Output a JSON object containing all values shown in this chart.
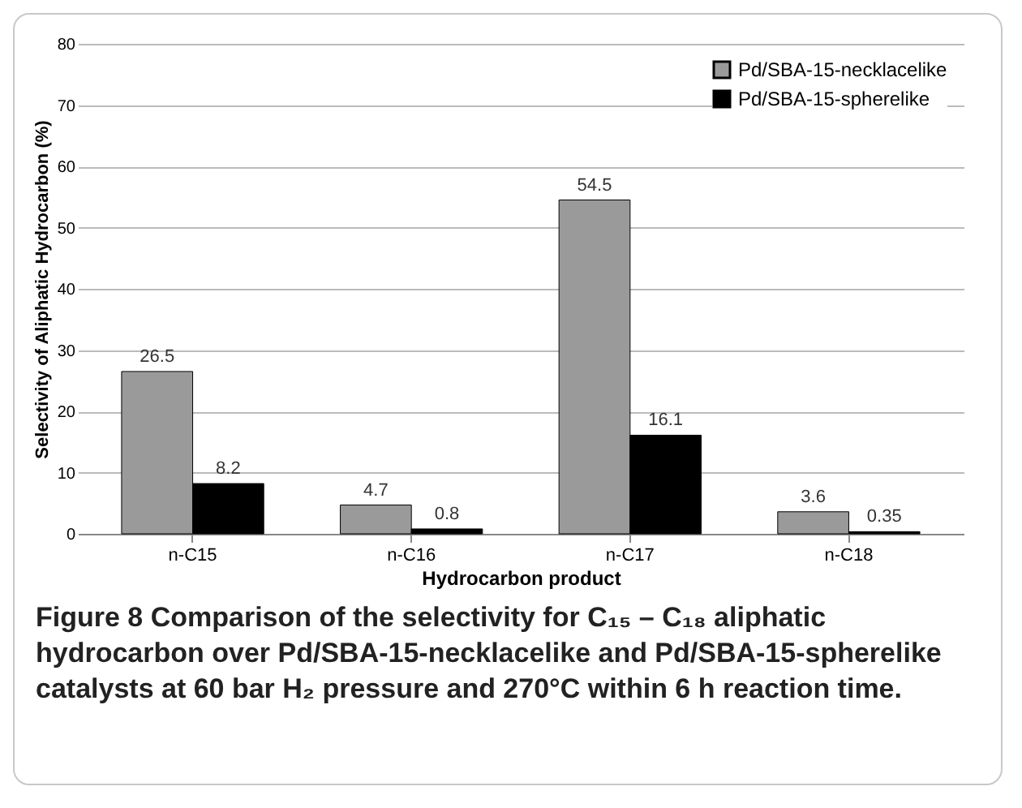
{
  "chart_data": {
    "type": "bar",
    "xlabel": "Hydrocarbon product",
    "ylabel": "Selectivity of Aliphatic Hydrocarbon (%)",
    "categories": [
      "n-C15",
      "n-C16",
      "n-C17",
      "n-C18"
    ],
    "series": [
      {
        "name": "Pd/SBA-15-necklacelike",
        "color": "#9a9a9a",
        "values": [
          26.5,
          4.7,
          54.5,
          3.6
        ]
      },
      {
        "name": "Pd/SBA-15-spherelike",
        "color": "#000000",
        "values": [
          8.2,
          0.8,
          16.1,
          0.35
        ]
      }
    ],
    "ylim": [
      0,
      80
    ],
    "yticks": [
      0,
      10,
      20,
      30,
      40,
      50,
      60,
      70,
      80
    ],
    "grid": "y",
    "legend": "top right",
    "data_labels": true,
    "annotations": [
      "Figure 8 Comparison of the selectivity for C₁₅ – C₁₈ aliphatic hydrocarbon over Pd/SBA-15-necklacelike and Pd/SBA-15-spherelike catalysts at 60 bar H₂ pressure and 270°C within 6 h reaction time."
    ]
  }
}
